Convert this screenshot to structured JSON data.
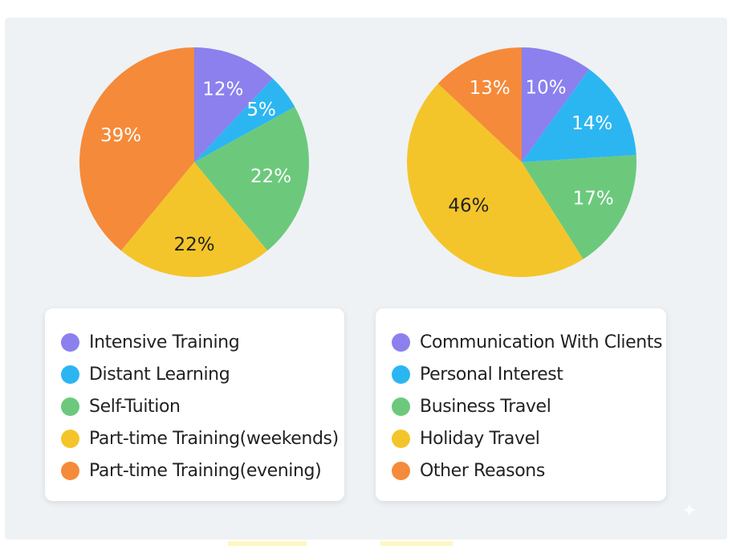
{
  "title": "",
  "colors": {
    "purple": "#8b80ee",
    "blue": "#2bb6f2",
    "green": "#6cc97c",
    "yellow": "#f4c52a",
    "orange": "#f58a3a"
  },
  "chart_data": [
    {
      "type": "pie",
      "title": "",
      "labels": [
        "Intensive Training",
        "Distant Learning",
        "Self-Tuition",
        "Part-time Training(weekends)",
        "Part-time Training(evening)"
      ],
      "values": [
        12,
        5,
        22,
        22,
        39
      ],
      "value_labels": [
        "12%",
        "5%",
        "22%",
        "22%",
        "39%"
      ],
      "colors": [
        "#8b80ee",
        "#2bb6f2",
        "#6cc97c",
        "#f4c52a",
        "#f58a3a"
      ],
      "label_colors": [
        "#ffffff",
        "#ffffff",
        "#ffffff",
        "#222222",
        "#ffffff"
      ],
      "start": "12 o'clock",
      "direction": "clockwise",
      "legend_position": "below"
    },
    {
      "type": "pie",
      "title": "",
      "labels": [
        "Communication With Clients",
        "Personal Interest",
        "Business Travel",
        "Holiday Travel",
        "Other Reasons"
      ],
      "values": [
        10,
        14,
        17,
        46,
        13
      ],
      "value_labels": [
        "10%",
        "14%",
        "17%",
        "46%",
        "13%"
      ],
      "colors": [
        "#8b80ee",
        "#2bb6f2",
        "#6cc97c",
        "#f4c52a",
        "#f58a3a"
      ],
      "label_colors": [
        "#ffffff",
        "#ffffff",
        "#ffffff",
        "#222222",
        "#ffffff"
      ],
      "start": "12 o'clock",
      "direction": "clockwise",
      "legend_position": "below"
    }
  ],
  "icons": {
    "watermark": "sparkle-icon"
  }
}
